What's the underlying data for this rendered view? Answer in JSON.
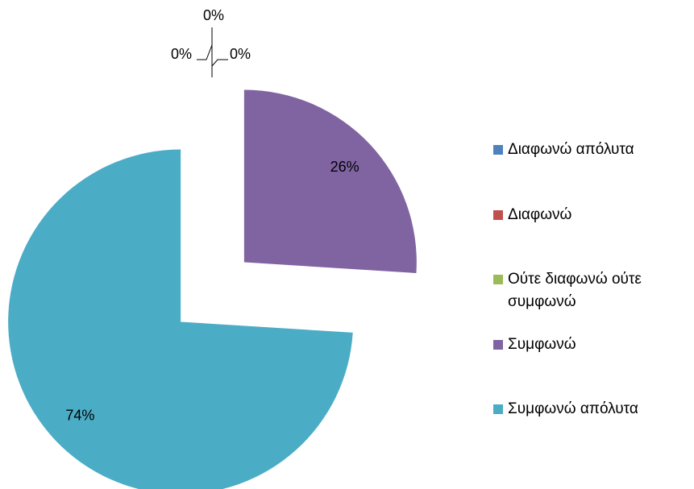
{
  "chart_data": {
    "type": "pie",
    "categories": [
      "Διαφωνώ απόλυτα",
      "Διαφωνώ",
      "Ούτε διαφωνώ ούτε συμφωνώ",
      "Συμφωνώ",
      "Συμφωνώ απόλυτα"
    ],
    "values": [
      0,
      0,
      0,
      26,
      74
    ],
    "value_labels": [
      "0%",
      "0%",
      "0%",
      "26%",
      "74%"
    ],
    "colors": [
      "#4f81bd",
      "#c0504d",
      "#9bbb59",
      "#8064a2",
      "#4bacc6"
    ],
    "legend": "right"
  }
}
